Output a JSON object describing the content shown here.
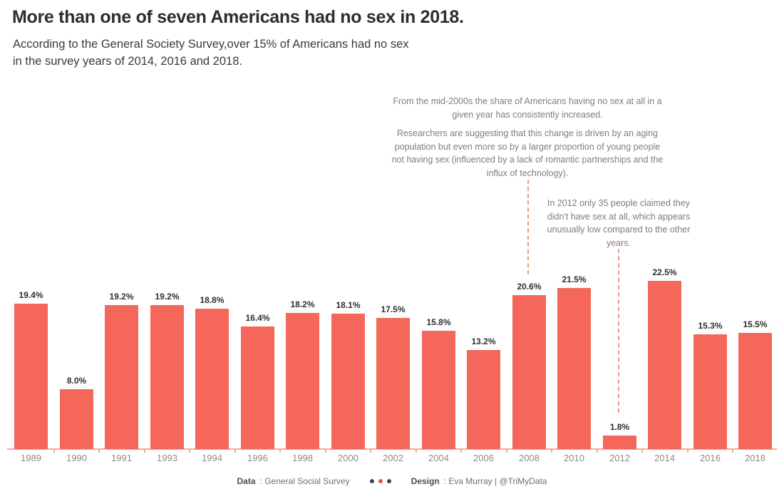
{
  "header": {
    "title": "More than one of seven Americans had no sex in 2018.",
    "subtitle_line1": "According to the General Society Survey,over 15% of Americans had no sex",
    "subtitle_line2": "in the survey years of 2014, 2016 and 2018."
  },
  "annotations": {
    "mid2000s": "From the mid-2000s the share of Americans having no sex at all in a given year has consistently increased.",
    "researchers": "Researchers are suggesting that this change is driven by an aging population but even more so by a larger proportion of young people not having sex (influenced by a lack of romantic partnerships and the influx of technology).",
    "year2012": "In 2012 only 35 people claimed they didn't have sex at all, which appears unusually low compared to the other years."
  },
  "chart_data": {
    "type": "bar",
    "categories": [
      "1989",
      "1990",
      "1991",
      "1993",
      "1994",
      "1996",
      "1998",
      "2000",
      "2002",
      "2004",
      "2006",
      "2008",
      "2010",
      "2012",
      "2014",
      "2016",
      "2018"
    ],
    "values": [
      19.4,
      8.0,
      19.2,
      19.2,
      18.8,
      16.4,
      18.2,
      18.1,
      17.5,
      15.8,
      13.2,
      20.6,
      21.5,
      1.8,
      22.5,
      15.3,
      15.5
    ],
    "labels": [
      "19.4%",
      "8.0%",
      "19.2%",
      "19.2%",
      "18.8%",
      "16.4%",
      "18.2%",
      "18.1%",
      "17.5%",
      "15.8%",
      "13.2%",
      "20.6%",
      "21.5%",
      "1.8%",
      "22.5%",
      "15.3%",
      "15.5%"
    ],
    "title": "More than one of seven Americans had no sex in 2018.",
    "xlabel": "",
    "ylabel": "",
    "ylim": [
      0,
      24
    ],
    "grid": false,
    "legend": "none",
    "bar_color": "#f4675a",
    "axis_color": "#f2a89c",
    "callout_line_color": "#ef9a8b"
  },
  "footer": {
    "data_label": "Data",
    "data_value": ": General Social Survey",
    "design_label": "Design",
    "design_value": ": Eva Murray | @TriMyData",
    "dot_colors": [
      "#3c4453",
      "#e0544a",
      "#3c4453"
    ]
  }
}
